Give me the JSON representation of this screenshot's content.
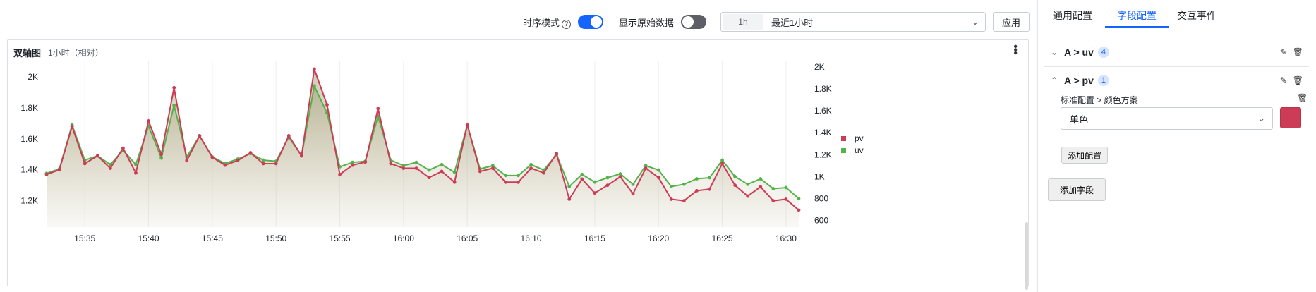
{
  "toolbar": {
    "timeseries_label": "时序模式",
    "help_glyph": "?",
    "raw_label": "显示原始数据",
    "range_chip": "1h",
    "range_value": "最近1小时",
    "apply_label": "应用"
  },
  "panel": {
    "title": "双轴图",
    "subtitle": "1小时（相对）"
  },
  "side": {
    "tabs": [
      "通用配置",
      "字段配置",
      "交互事件"
    ],
    "active_tab": 1,
    "fields": [
      {
        "name": "A > uv",
        "count": "4",
        "expanded": false
      },
      {
        "name": "A > pv",
        "count": "1",
        "expanded": true
      }
    ],
    "config_path": "标准配置 > 颜色方案",
    "color_mode": "单色",
    "color_value": "#cc3c56",
    "add_config": "添加配置",
    "add_field": "添加字段"
  },
  "chart_data": {
    "type": "line",
    "x_ticks": [
      "15:35",
      "15:40",
      "15:45",
      "15:50",
      "15:55",
      "16:00",
      "16:05",
      "16:10",
      "16:15",
      "16:20",
      "16:25",
      "16:30"
    ],
    "x_start_min": 932,
    "x_step_min": 1,
    "x_range_min": [
      932,
      991.5
    ],
    "y_left": {
      "ticks": [
        "1.2K",
        "1.4K",
        "1.6K",
        "1.8K",
        "2K"
      ],
      "values": [
        1200,
        1400,
        1600,
        1800,
        2000
      ],
      "range": [
        1030,
        2100
      ]
    },
    "y_right": {
      "ticks": [
        "600",
        "800",
        "1K",
        "1.2K",
        "1.4K",
        "1.6K",
        "1.8K",
        "2K"
      ],
      "values": [
        600,
        800,
        1000,
        1200,
        1400,
        1600,
        1800,
        2000
      ],
      "range": [
        540,
        2050
      ]
    },
    "legend": {
      "position": "right",
      "entries": [
        "pv",
        "uv"
      ]
    },
    "series": [
      {
        "name": "pv",
        "axis": "left",
        "color": "#cc3c56",
        "values": [
          1370,
          1400,
          1680,
          1440,
          1490,
          1410,
          1540,
          1380,
          1715,
          1500,
          1930,
          1460,
          1620,
          1480,
          1430,
          1460,
          1510,
          1440,
          1440,
          1620,
          1490,
          2050,
          1820,
          1370,
          1430,
          1450,
          1795,
          1440,
          1410,
          1410,
          1350,
          1390,
          1320,
          1690,
          1390,
          1410,
          1320,
          1320,
          1410,
          1380,
          1505,
          1210,
          1340,
          1250,
          1300,
          1355,
          1245,
          1410,
          1350,
          1210,
          1200,
          1265,
          1275,
          1440,
          1300,
          1230,
          1290,
          1200,
          1210,
          1140
        ]
      },
      {
        "name": "uv",
        "axis": "right",
        "color": "#54b24a",
        "values": [
          1030,
          1070,
          1470,
          1150,
          1190,
          1110,
          1240,
          1110,
          1460,
          1170,
          1650,
          1180,
          1370,
          1180,
          1120,
          1160,
          1210,
          1150,
          1140,
          1360,
          1190,
          1825,
          1580,
          1090,
          1130,
          1140,
          1550,
          1150,
          1100,
          1130,
          1060,
          1110,
          1040,
          1470,
          1070,
          1100,
          1010,
          1010,
          1110,
          1060,
          1200,
          910,
          1020,
          950,
          990,
          1025,
          930,
          1100,
          1060,
          910,
          930,
          980,
          990,
          1150,
          1000,
          930,
          980,
          890,
          900,
          800
        ]
      }
    ]
  }
}
